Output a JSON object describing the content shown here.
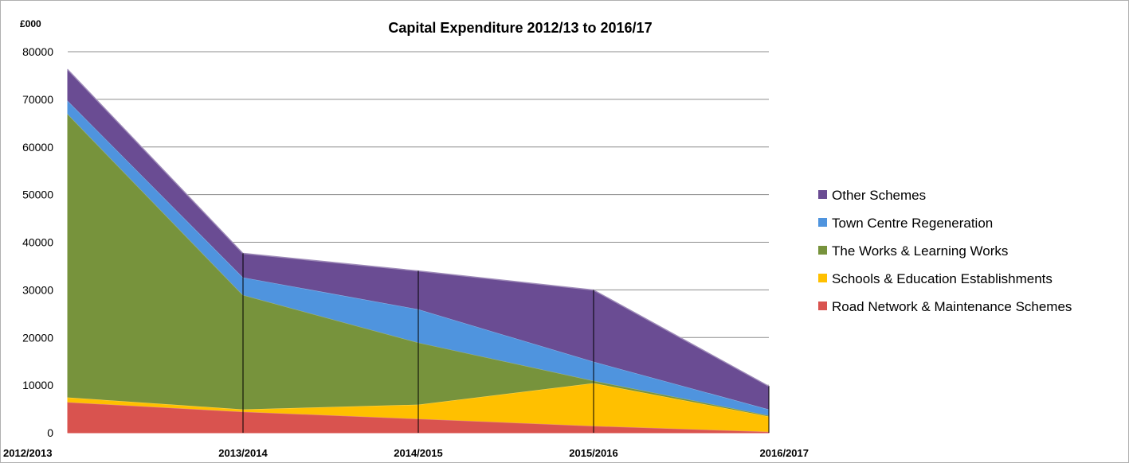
{
  "chart_data": {
    "type": "area",
    "stacked": true,
    "title": "Capital Expenditure 2012/13 to 2016/17",
    "unit_label": "£000",
    "xlabel": "",
    "ylabel": "",
    "ylim": [
      0,
      80000
    ],
    "yticks": [
      "0",
      "10000",
      "20000",
      "30000",
      "40000",
      "50000",
      "60000",
      "70000",
      "80000"
    ],
    "categories": [
      "2012/2013",
      "2013/2014",
      "2014/2015",
      "2015/2016",
      "2016/2017"
    ],
    "grid": true,
    "legend_position": "right",
    "series": [
      {
        "name": "Road Network & Maintenance Schemes",
        "color": "#d9534f",
        "values": [
          6500,
          4500,
          3000,
          1500,
          300
        ]
      },
      {
        "name": "Schools & Education Establishments",
        "color": "#ffc000",
        "values": [
          1000,
          500,
          3000,
          9000,
          3200
        ]
      },
      {
        "name": "The Works & Learning Works",
        "color": "#77933c",
        "values": [
          59500,
          24000,
          13000,
          500,
          200
        ]
      },
      {
        "name": "Town Centre Regeneration",
        "color": "#4f94de",
        "values": [
          2800,
          3700,
          7000,
          4000,
          1300
        ]
      },
      {
        "name": "Other Schemes",
        "color": "#6a4c93",
        "values": [
          6500,
          5000,
          8000,
          15000,
          4800
        ]
      }
    ]
  }
}
